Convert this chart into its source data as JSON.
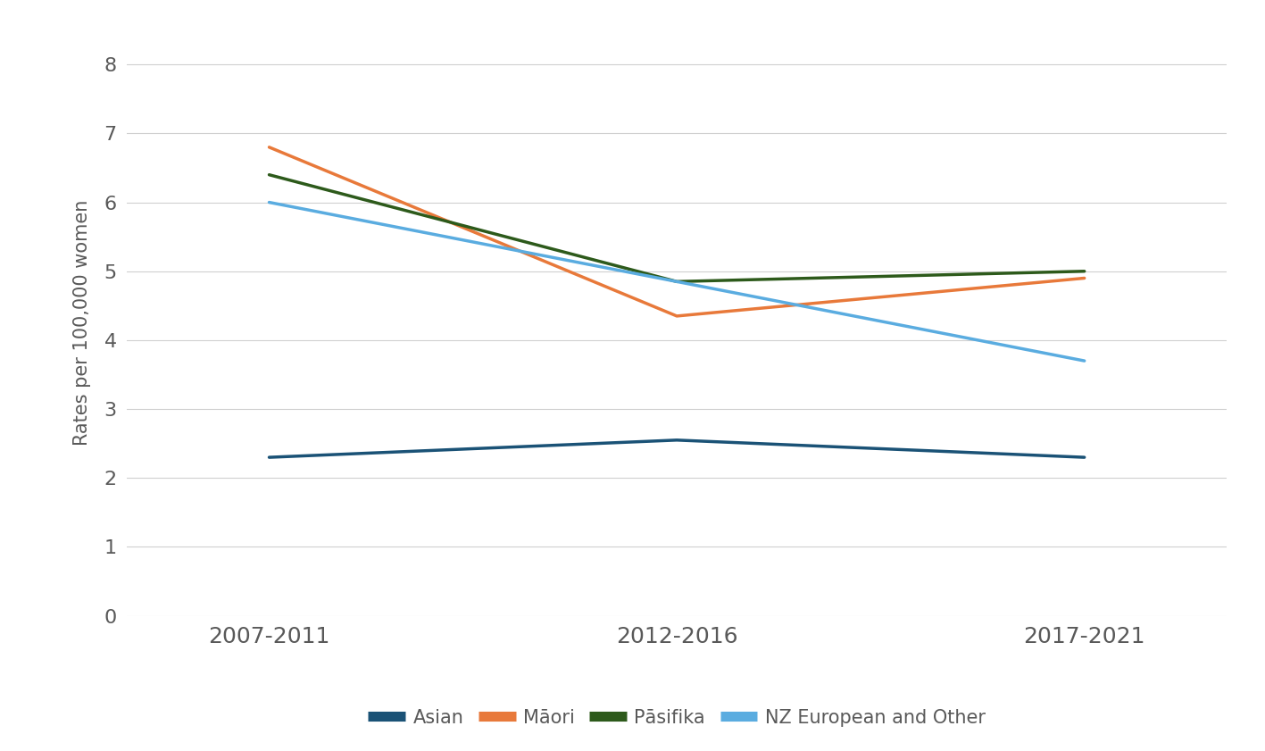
{
  "x_labels": [
    "2007-2011",
    "2012-2016",
    "2017-2021"
  ],
  "x_positions": [
    0,
    1,
    2
  ],
  "series": [
    {
      "name": "Asian",
      "values": [
        2.3,
        2.55,
        2.3
      ],
      "color": "#1a5276",
      "linewidth": 2.5
    },
    {
      "name": "Māori",
      "values": [
        6.8,
        4.35,
        4.9
      ],
      "color": "#e8793a",
      "linewidth": 2.5
    },
    {
      "name": "Pāsifika",
      "values": [
        6.4,
        4.85,
        5.0
      ],
      "color": "#2d5a1b",
      "linewidth": 2.5
    },
    {
      "name": "NZ European and Other",
      "values": [
        6.0,
        4.85,
        3.7
      ],
      "color": "#5aace0",
      "linewidth": 2.5
    }
  ],
  "ylabel": "Rates per 100,000 women",
  "ylim": [
    0,
    8.5
  ],
  "yticks": [
    0,
    1,
    2,
    3,
    4,
    5,
    6,
    7,
    8
  ],
  "background_color": "#ffffff",
  "grid_color": "#d0d0d0",
  "ylabel_fontsize": 15,
  "tick_fontsize": 16,
  "legend_fontsize": 15,
  "xtick_fontsize": 18
}
